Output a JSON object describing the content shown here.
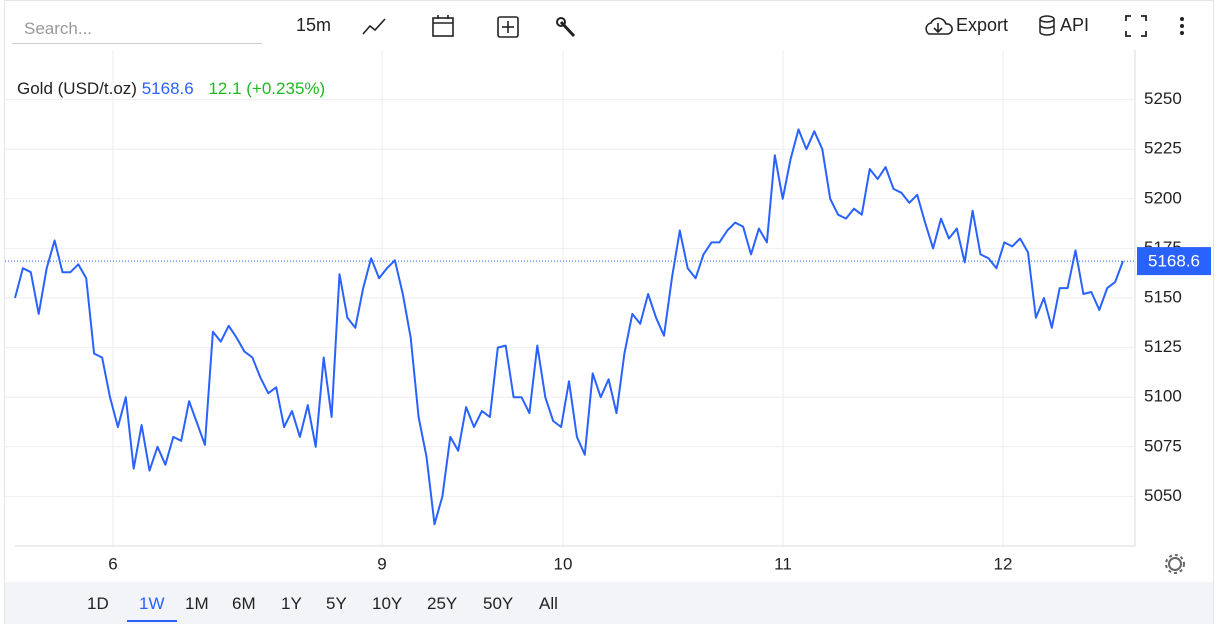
{
  "toolbar": {
    "search_placeholder": "Search...",
    "interval": "15m",
    "export": "Export",
    "api": "API"
  },
  "ranges": {
    "items": [
      "1D",
      "1W",
      "1M",
      "6M",
      "1Y",
      "5Y",
      "10Y",
      "25Y",
      "50Y",
      "All"
    ],
    "active": "1W"
  },
  "chart_data": {
    "type": "line",
    "title": "Gold (USD/t.oz)",
    "last_price": 5168.6,
    "last_price_label": "5168.6",
    "change": "12.1 (+0.235%)",
    "color": "#2962ff",
    "grid": true,
    "ylim": [
      5025,
      5275
    ],
    "yticks": [
      5050,
      5075,
      5100,
      5125,
      5150,
      5175,
      5200,
      5225,
      5250
    ],
    "xticks": [
      "6",
      "9",
      "10",
      "11",
      "12"
    ],
    "values": [
      5150,
      5165,
      5163,
      5142,
      5165,
      5179,
      5163,
      5163,
      5167,
      5160,
      5122,
      5120,
      5100,
      5085,
      5100,
      5064,
      5086,
      5063,
      5075,
      5066,
      5080,
      5078,
      5098,
      5087,
      5076,
      5133,
      5128,
      5136,
      5130,
      5123,
      5120,
      5110,
      5102,
      5105,
      5085,
      5093,
      5080,
      5096,
      5075,
      5120,
      5090,
      5162,
      5140,
      5135,
      5155,
      5170,
      5160,
      5165,
      5169,
      5152,
      5130,
      5090,
      5070,
      5036,
      5050,
      5080,
      5073,
      5095,
      5085,
      5093,
      5090,
      5125,
      5126,
      5100,
      5100,
      5092,
      5126,
      5100,
      5088,
      5085,
      5108,
      5080,
      5071,
      5112,
      5100,
      5109,
      5092,
      5122,
      5142,
      5137,
      5152,
      5140,
      5131,
      5160,
      5184,
      5165,
      5160,
      5172,
      5178,
      5178,
      5184,
      5188,
      5186,
      5172,
      5185,
      5178,
      5222,
      5200,
      5220,
      5235,
      5225,
      5234,
      5225,
      5200,
      5192,
      5190,
      5195,
      5192,
      5215,
      5210,
      5216,
      5205,
      5203,
      5198,
      5202,
      5188,
      5175,
      5190,
      5180,
      5185,
      5168,
      5194,
      5172,
      5170,
      5165,
      5178,
      5176,
      5180,
      5173,
      5140,
      5150,
      5135,
      5155,
      5155,
      5174,
      5152,
      5153,
      5144,
      5155,
      5158,
      5168.6
    ]
  }
}
